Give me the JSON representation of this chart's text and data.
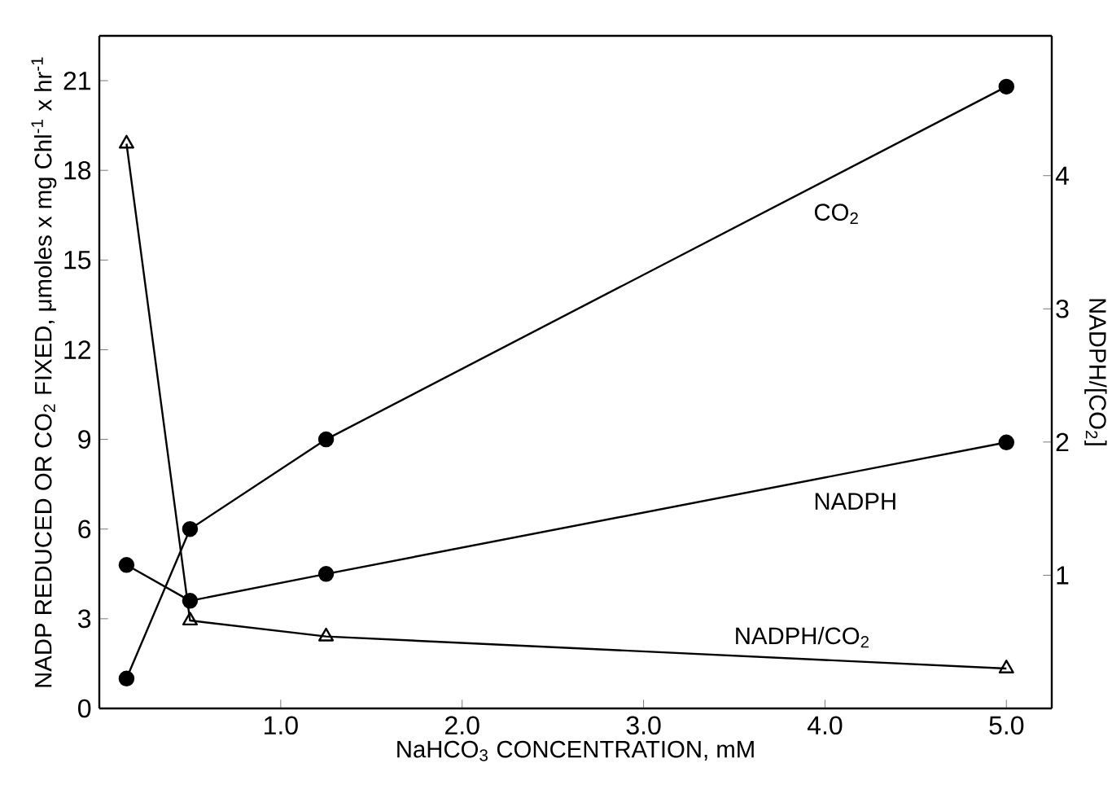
{
  "chart_data": {
    "type": "line",
    "xlabel": "NaHCO$_{3}$ CONCENTRATION, mM",
    "ylabel": "NADP REDUCED OR CO$_{2}$ FIXED, μmoles x mg Chl$^{-1}$ x hr$^{-1}$",
    "y2label": "NADPH/[CO$_{2}$]",
    "x": [
      0.15,
      0.5,
      1.25,
      5.0
    ],
    "xlim": [
      0,
      5.25
    ],
    "xticks": [
      {
        "value": 1,
        "label": "1.0"
      },
      {
        "value": 2,
        "label": "2.0"
      },
      {
        "value": 3,
        "label": "3.0"
      },
      {
        "value": 4,
        "label": "4.0"
      },
      {
        "value": 5,
        "label": "5.0"
      }
    ],
    "ylim": [
      0,
      22.5
    ],
    "yticks": [
      0,
      3,
      6,
      9,
      12,
      15,
      18,
      21
    ],
    "y2lim": [
      0,
      5.05
    ],
    "y2ticks": [
      1,
      2,
      3,
      4
    ],
    "series": [
      {
        "name": "CO$_{2}$",
        "color": "#000000",
        "marker": "circle",
        "values": [
          1.0,
          6.0,
          9.0,
          20.8
        ]
      },
      {
        "name": "NADPH",
        "color": "#000000",
        "marker": "circle",
        "values": [
          4.8,
          3.6,
          4.5,
          8.9
        ]
      },
      {
        "name": "NADPH/CO$_{2}$",
        "color": "#000000",
        "marker": "triangle",
        "axis": "y2",
        "values": [
          4.24,
          0.66,
          0.54,
          0.3
        ]
      }
    ],
    "grid": false,
    "line_style": "solid"
  }
}
